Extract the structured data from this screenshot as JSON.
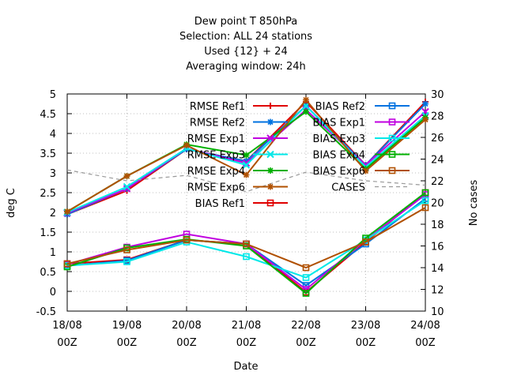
{
  "chart_data": {
    "type": "line",
    "title_lines": [
      "Dew point T 850hPa",
      "Selection: ALL      24 stations",
      "Used {12} + 24",
      "Averaging window: 24h"
    ],
    "xlabel": "Date",
    "ylabel": "deg C",
    "y2label": "No cases",
    "categories": [
      "18/08\n00Z",
      "19/08\n00Z",
      "20/08\n00Z",
      "21/08\n00Z",
      "22/08\n00Z",
      "23/08\n00Z",
      "24/08\n00Z"
    ],
    "ylim": [
      -0.5,
      5
    ],
    "yticks": [
      "-0.5",
      "0",
      "0.5",
      "1",
      "1.5",
      "2",
      "2.5",
      "3",
      "3.5",
      "4",
      "4.5",
      "5"
    ],
    "y2lim": [
      10,
      30
    ],
    "y2ticks": [
      "10",
      "12",
      "14",
      "16",
      "18",
      "20",
      "22",
      "24",
      "26",
      "28",
      "30"
    ],
    "grid": true,
    "legend_position": "top-right",
    "series": [
      {
        "name": "RMSE Ref1",
        "color": "#e00000",
        "marker": "plus",
        "axis": "y",
        "values": [
          1.95,
          2.55,
          3.6,
          3.3,
          4.8,
          3.2,
          4.8
        ]
      },
      {
        "name": "RMSE Ref2",
        "color": "#0072e0",
        "marker": "star",
        "axis": "y",
        "values": [
          1.95,
          2.6,
          3.6,
          3.3,
          4.7,
          3.2,
          4.75
        ]
      },
      {
        "name": "RMSE Exp1",
        "color": "#c000e0",
        "marker": "x",
        "axis": "y",
        "values": [
          1.98,
          2.6,
          3.62,
          3.25,
          4.6,
          3.2,
          4.55
        ]
      },
      {
        "name": "RMSE Exp3",
        "color": "#00e8e8",
        "marker": "x",
        "axis": "y",
        "values": [
          2.0,
          2.65,
          3.62,
          3.2,
          4.7,
          3.15,
          4.45
        ]
      },
      {
        "name": "RMSE Exp4",
        "color": "#00b000",
        "marker": "star",
        "axis": "y",
        "values": [
          2.02,
          2.92,
          3.72,
          3.45,
          4.55,
          3.1,
          4.4
        ]
      },
      {
        "name": "RMSE Exp6",
        "color": "#b05000",
        "marker": "star",
        "axis": "y",
        "values": [
          2.02,
          2.92,
          3.7,
          2.95,
          4.85,
          3.05,
          4.35
        ]
      },
      {
        "name": "BIAS Ref1",
        "color": "#e00000",
        "marker": "square",
        "axis": "y",
        "values": [
          0.7,
          0.8,
          1.3,
          1.2,
          -0.02,
          1.25,
          2.5
        ]
      },
      {
        "name": "BIAS Ref2",
        "color": "#0072e0",
        "marker": "square",
        "axis": "y",
        "values": [
          0.65,
          0.78,
          1.3,
          1.2,
          0.15,
          1.2,
          2.35
        ]
      },
      {
        "name": "BIAS Exp1",
        "color": "#c000e0",
        "marker": "square",
        "axis": "y",
        "values": [
          0.68,
          1.12,
          1.45,
          1.2,
          0.05,
          1.3,
          2.45
        ]
      },
      {
        "name": "BIAS Exp3",
        "color": "#00e8e8",
        "marker": "square",
        "axis": "y",
        "values": [
          0.65,
          0.75,
          1.25,
          0.88,
          0.35,
          1.3,
          2.3
        ]
      },
      {
        "name": "BIAS Exp4",
        "color": "#00b000",
        "marker": "square",
        "axis": "y",
        "values": [
          0.62,
          1.1,
          1.32,
          1.15,
          -0.05,
          1.35,
          2.5
        ]
      },
      {
        "name": "BIAS Exp6",
        "color": "#b05000",
        "marker": "square",
        "axis": "y",
        "values": [
          0.7,
          1.05,
          1.3,
          1.2,
          0.6,
          1.25,
          2.12
        ]
      },
      {
        "name": "CASES",
        "color": "#999999",
        "marker": "none",
        "dash": true,
        "axis": "y2",
        "values": [
          23.0,
          22.0,
          22.5,
          21.0,
          22.8,
          22.0,
          21.6
        ]
      }
    ]
  }
}
